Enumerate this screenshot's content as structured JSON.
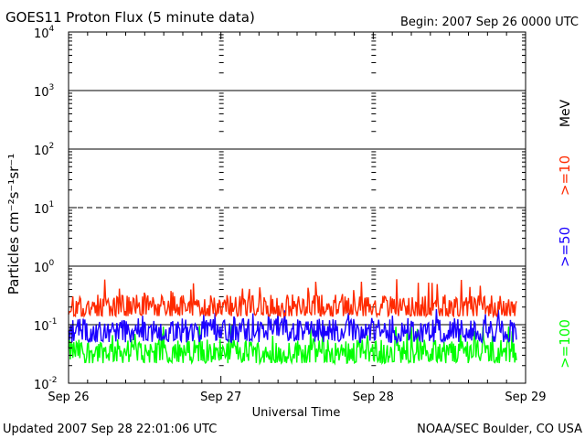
{
  "header": {
    "title": "GOES11 Proton Flux (5 minute data)",
    "begin": "Begin: 2007 Sep 26 0000 UTC"
  },
  "footer": {
    "updated": "Updated 2007 Sep 28 22:01:06 UTC",
    "credit": "NOAA/SEC Boulder, CO USA"
  },
  "chart_data": {
    "type": "line",
    "title": "GOES11 Proton Flux (5 minute data)",
    "xlabel": "Universal Time",
    "ylabel": "Particles cm⁻²s⁻¹sr⁻¹",
    "yscale": "log",
    "ylim": [
      0.01,
      10000
    ],
    "xlim": [
      0,
      3
    ],
    "x_tick_labels": [
      "Sep 26",
      "Sep 27",
      "Sep 28",
      "Sep 29"
    ],
    "y_tick_labels": [
      {
        "base": "10",
        "exp": "-2"
      },
      {
        "base": "10",
        "exp": "-1"
      },
      {
        "base": "10",
        "exp": "0"
      },
      {
        "base": "10",
        "exp": "1"
      },
      {
        "base": "10",
        "exp": "2"
      },
      {
        "base": "10",
        "exp": "3"
      },
      {
        "base": "10",
        "exp": "4"
      }
    ],
    "unit_label": "MeV",
    "grid": true,
    "legend_position": "right",
    "series": [
      {
        "name": ">=10",
        "color": "#ff2a00",
        "x_range": [
          0,
          2.94
        ],
        "typical": 0.2,
        "min": 0.14,
        "max": 0.6
      },
      {
        "name": ">=50",
        "color": "#1a00ff",
        "x_range": [
          0,
          2.94
        ],
        "typical": 0.08,
        "min": 0.05,
        "max": 0.2
      },
      {
        "name": ">=100",
        "color": "#00ff00",
        "x_range": [
          0,
          2.94
        ],
        "typical": 0.035,
        "min": 0.022,
        "max": 0.1
      }
    ]
  }
}
